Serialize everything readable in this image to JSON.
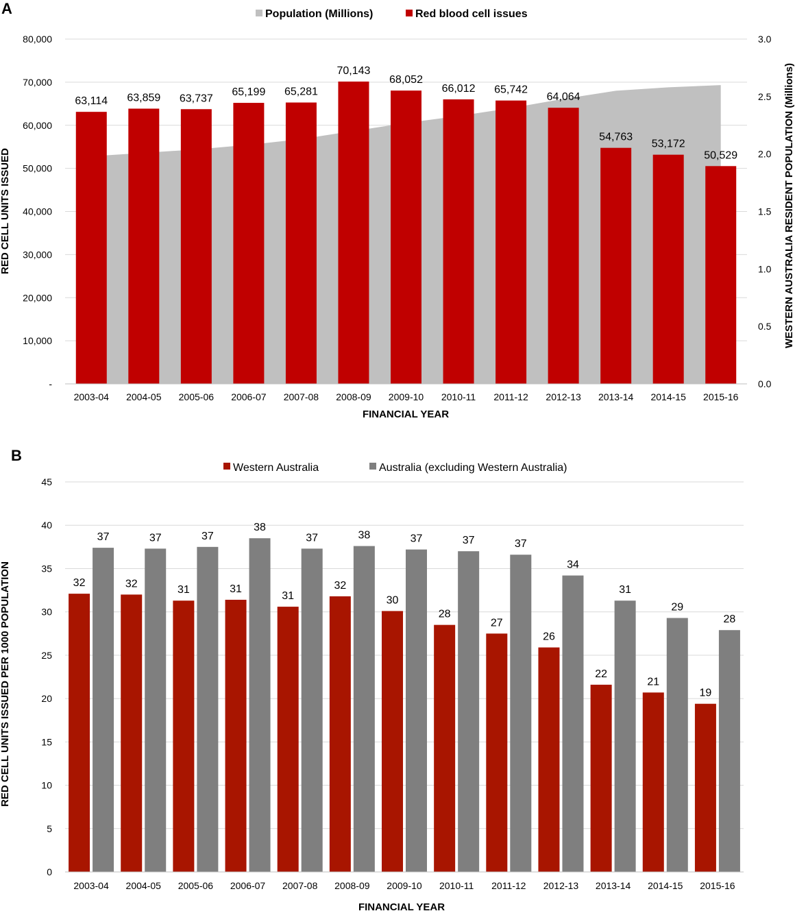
{
  "panel_a": {
    "letter": "A"
  },
  "panel_b": {
    "letter": "B"
  },
  "colors": {
    "wa_red": "#C00000",
    "wa_red_b": "#A81500",
    "population_gray": "#C0C0C0",
    "aus_gray": "#7F7F7F",
    "grid": "#D9D9D9"
  },
  "chart_data": [
    {
      "type": "bar",
      "secondary_type": "area",
      "categories": [
        "2003-04",
        "2004-05",
        "2005-06",
        "2006-07",
        "2007-08",
        "2008-09",
        "2009-10",
        "2010-11",
        "2011-12",
        "2012-13",
        "2013-14",
        "2014-15",
        "2015-16"
      ],
      "series": [
        {
          "name": "Red blood cell issues",
          "type": "bar",
          "axis": "left",
          "values": [
            63114,
            63859,
            63737,
            65199,
            65281,
            70143,
            68052,
            66012,
            65742,
            64064,
            54763,
            53172,
            50529
          ],
          "labels": [
            "63,114",
            "63,859",
            "63,737",
            "65,199",
            "65,281",
            "70,143",
            "68,052",
            "66,012",
            "65,742",
            "64,064",
            "54,763",
            "53,172",
            "50,529"
          ]
        },
        {
          "name": "Population (Millions)",
          "type": "area",
          "axis": "right",
          "values": [
            1.98,
            2.01,
            2.04,
            2.08,
            2.13,
            2.2,
            2.27,
            2.33,
            2.4,
            2.48,
            2.55,
            2.58,
            2.6
          ]
        }
      ],
      "xlabel": "FINANCIAL YEAR",
      "ylabel": "RED CELL UNITS ISSUED",
      "y2label": "WESTERN AUSTRALIA RESIDENT POPULATION (Millions)",
      "ylim": [
        0,
        80000
      ],
      "y2lim": [
        0,
        3
      ],
      "yticks": [
        "-",
        "10,000",
        "20,000",
        "30,000",
        "40,000",
        "50,000",
        "60,000",
        "70,000",
        "80,000"
      ],
      "y2ticks": [
        "0.0",
        "0.5",
        "1.0",
        "1.5",
        "2.0",
        "2.5",
        "3.0"
      ],
      "grid": true,
      "legend": "top-center"
    },
    {
      "type": "bar",
      "categories": [
        "2003-04",
        "2004-05",
        "2005-06",
        "2006-07",
        "2007-08",
        "2008-09",
        "2009-10",
        "2010-11",
        "2011-12",
        "2012-13",
        "2013-14",
        "2014-15",
        "2015-16"
      ],
      "series": [
        {
          "name": "Western Australia",
          "values": [
            32.1,
            32.0,
            31.3,
            31.4,
            30.6,
            31.8,
            30.1,
            28.5,
            27.5,
            25.9,
            21.6,
            20.7,
            19.4
          ],
          "labels": [
            "32",
            "32",
            "31",
            "31",
            "31",
            "32",
            "30",
            "28",
            "27",
            "26",
            "22",
            "21",
            "19"
          ]
        },
        {
          "name": "Australia (excluding Western Australia)",
          "values": [
            37.4,
            37.3,
            37.5,
            38.5,
            37.3,
            37.6,
            37.2,
            37.0,
            36.6,
            34.2,
            31.3,
            29.3,
            27.9
          ],
          "labels": [
            "37",
            "37",
            "37",
            "38",
            "37",
            "38",
            "37",
            "37",
            "37",
            "34",
            "31",
            "29",
            "28"
          ]
        }
      ],
      "xlabel": "FINANCIAL YEAR",
      "ylabel": "RED CELL UNITS ISSUED PER 1000 POPULATION",
      "ylim": [
        0,
        45
      ],
      "yticks": [
        "0",
        "5",
        "10",
        "15",
        "20",
        "25",
        "30",
        "35",
        "40",
        "45"
      ],
      "grid": true,
      "legend": "top-center"
    }
  ]
}
